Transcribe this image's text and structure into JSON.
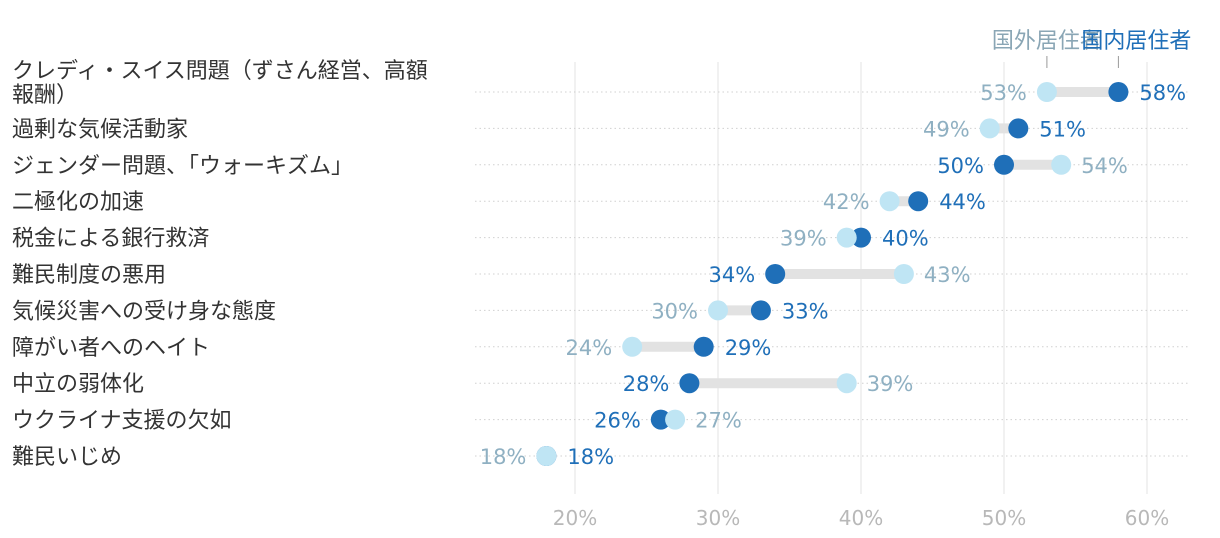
{
  "chart_data": {
    "type": "dumbbell",
    "title": "",
    "xlabel": "",
    "ylabel": "",
    "xlim": [
      13,
      63
    ],
    "x_ticks": [
      20,
      30,
      40,
      50,
      60
    ],
    "x_tick_labels": [
      "20%",
      "30%",
      "40%",
      "50%",
      "60%"
    ],
    "grid": "vertical",
    "legend_position": "top-right",
    "series": [
      {
        "key": "abroad",
        "name": "国外居住者",
        "color": "#bfe5f4"
      },
      {
        "key": "domestic",
        "name": "国内居住者",
        "color": "#1f6fb8"
      }
    ],
    "categories": [
      {
        "label_lines": [
          "クレディ・スイス問題（ずさん経営、高額",
          "報酬）"
        ],
        "abroad": 53,
        "domestic": 58
      },
      {
        "label_lines": [
          "過剰な気候活動家"
        ],
        "abroad": 49,
        "domestic": 51
      },
      {
        "label_lines": [
          "ジェンダー問題、「ウォーキズム」"
        ],
        "abroad": 54,
        "domestic": 50
      },
      {
        "label_lines": [
          "二極化の加速"
        ],
        "abroad": 42,
        "domestic": 44
      },
      {
        "label_lines": [
          "税金による銀行救済"
        ],
        "abroad": 39,
        "domestic": 40
      },
      {
        "label_lines": [
          "難民制度の悪用"
        ],
        "abroad": 43,
        "domestic": 34
      },
      {
        "label_lines": [
          "気候災害への受け身な態度"
        ],
        "abroad": 30,
        "domestic": 33
      },
      {
        "label_lines": [
          "障がい者へのヘイト"
        ],
        "abroad": 24,
        "domestic": 29
      },
      {
        "label_lines": [
          "中立の弱体化"
        ],
        "abroad": 39,
        "domestic": 28
      },
      {
        "label_lines": [
          "ウクライナ支援の欠如"
        ],
        "abroad": 27,
        "domestic": 26
      },
      {
        "label_lines": [
          "難民いじめ"
        ],
        "abroad": 18,
        "domestic": 18
      }
    ],
    "value_suffix": "%"
  }
}
